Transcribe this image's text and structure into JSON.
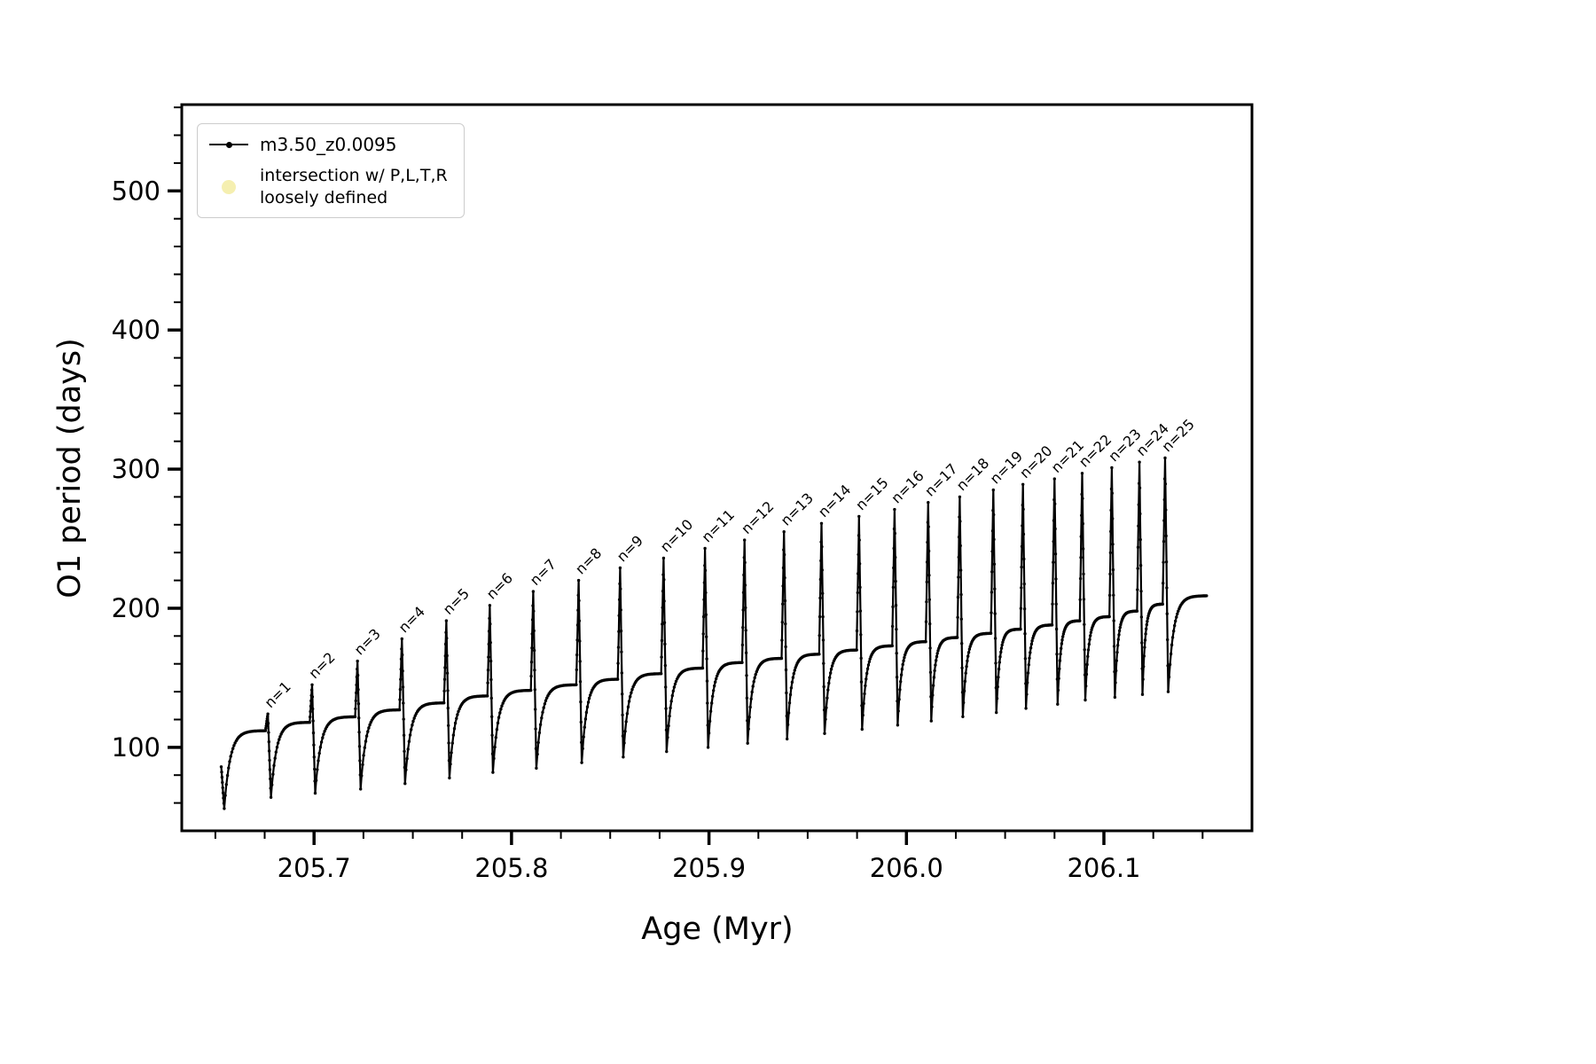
{
  "figure": {
    "background": "#ffffff",
    "line_color": "#000000",
    "axis_color": "#000000"
  },
  "legend": {
    "series_label": "m3.50_z0.0095",
    "intersection_label_line1": "intersection w/ P,L,T,R",
    "intersection_label_line2": "loosely defined",
    "intersection_marker_color": "#f5efb0"
  },
  "chart_data": {
    "type": "line",
    "title": "",
    "xlabel": "Age (Myr)",
    "ylabel": "O1 period (days)",
    "xlim": [
      205.633,
      206.175
    ],
    "ylim": [
      40,
      562
    ],
    "grid": false,
    "legend_position": "upper left",
    "x_major_ticks": [
      205.7,
      205.8,
      205.9,
      206.0,
      206.1
    ],
    "x_tick_labels": [
      "205.7",
      "205.8",
      "205.9",
      "206.0",
      "206.1"
    ],
    "x_minor_step": 0.025,
    "y_major_ticks": [
      100,
      200,
      300,
      400,
      500
    ],
    "y_tick_labels": [
      "100",
      "200",
      "300",
      "400",
      "500"
    ],
    "y_minor_step": 20,
    "series": [
      {
        "name": "m3.50_z0.0095",
        "color": "#000000",
        "marker": "point"
      }
    ],
    "start_segment": {
      "age_start": 205.653,
      "value_start": 86,
      "age_min": 205.6545,
      "value_min": 56
    },
    "end_segment": {
      "age_end": 206.152,
      "value_end": 209
    },
    "first_plateau": 112,
    "spike_half_width": 0.0012,
    "cycles": [
      {
        "n": 1,
        "label": "n=1",
        "age": 205.6766,
        "peak": 124,
        "min_after": 64,
        "plateau_next": 118
      },
      {
        "n": 2,
        "label": "n=2",
        "age": 205.699,
        "peak": 145,
        "min_after": 67,
        "plateau_next": 122
      },
      {
        "n": 3,
        "label": "n=3",
        "age": 205.722,
        "peak": 162,
        "min_after": 70,
        "plateau_next": 127
      },
      {
        "n": 4,
        "label": "n=4",
        "age": 205.7445,
        "peak": 178,
        "min_after": 74,
        "plateau_next": 132
      },
      {
        "n": 5,
        "label": "n=5",
        "age": 205.767,
        "peak": 191,
        "min_after": 78,
        "plateau_next": 137
      },
      {
        "n": 6,
        "label": "n=6",
        "age": 205.789,
        "peak": 202,
        "min_after": 82,
        "plateau_next": 141
      },
      {
        "n": 7,
        "label": "n=7",
        "age": 205.811,
        "peak": 212,
        "min_after": 85,
        "plateau_next": 145
      },
      {
        "n": 8,
        "label": "n=8",
        "age": 205.834,
        "peak": 220,
        "min_after": 89,
        "plateau_next": 149
      },
      {
        "n": 9,
        "label": "n=9",
        "age": 205.855,
        "peak": 229,
        "min_after": 93,
        "plateau_next": 153
      },
      {
        "n": 10,
        "label": "n=10",
        "age": 205.877,
        "peak": 236,
        "min_after": 97,
        "plateau_next": 157
      },
      {
        "n": 11,
        "label": "n=11",
        "age": 205.898,
        "peak": 243,
        "min_after": 100,
        "plateau_next": 161
      },
      {
        "n": 12,
        "label": "n=12",
        "age": 205.918,
        "peak": 249,
        "min_after": 103,
        "plateau_next": 164
      },
      {
        "n": 13,
        "label": "n=13",
        "age": 205.938,
        "peak": 255,
        "min_after": 106,
        "plateau_next": 167
      },
      {
        "n": 14,
        "label": "n=14",
        "age": 205.957,
        "peak": 261,
        "min_after": 110,
        "plateau_next": 170
      },
      {
        "n": 15,
        "label": "n=15",
        "age": 205.976,
        "peak": 266,
        "min_after": 113,
        "plateau_next": 173
      },
      {
        "n": 16,
        "label": "n=16",
        "age": 205.994,
        "peak": 271,
        "min_after": 116,
        "plateau_next": 176
      },
      {
        "n": 17,
        "label": "n=17",
        "age": 206.011,
        "peak": 276,
        "min_after": 119,
        "plateau_next": 179
      },
      {
        "n": 18,
        "label": "n=18",
        "age": 206.027,
        "peak": 280,
        "min_after": 122,
        "plateau_next": 182
      },
      {
        "n": 19,
        "label": "n=19",
        "age": 206.044,
        "peak": 285,
        "min_after": 125,
        "plateau_next": 185
      },
      {
        "n": 20,
        "label": "n=20",
        "age": 206.059,
        "peak": 289,
        "min_after": 128,
        "plateau_next": 188
      },
      {
        "n": 21,
        "label": "n=21",
        "age": 206.075,
        "peak": 293,
        "min_after": 131,
        "plateau_next": 191
      },
      {
        "n": 22,
        "label": "n=22",
        "age": 206.089,
        "peak": 297,
        "min_after": 134,
        "plateau_next": 194
      },
      {
        "n": 23,
        "label": "n=23",
        "age": 206.104,
        "peak": 301,
        "min_after": 136,
        "plateau_next": 198
      },
      {
        "n": 24,
        "label": "n=24",
        "age": 206.118,
        "peak": 305,
        "min_after": 138,
        "plateau_next": 203
      },
      {
        "n": 25,
        "label": "n=25",
        "age": 206.131,
        "peak": 308,
        "min_after": 140,
        "plateau_next": 209
      }
    ]
  }
}
